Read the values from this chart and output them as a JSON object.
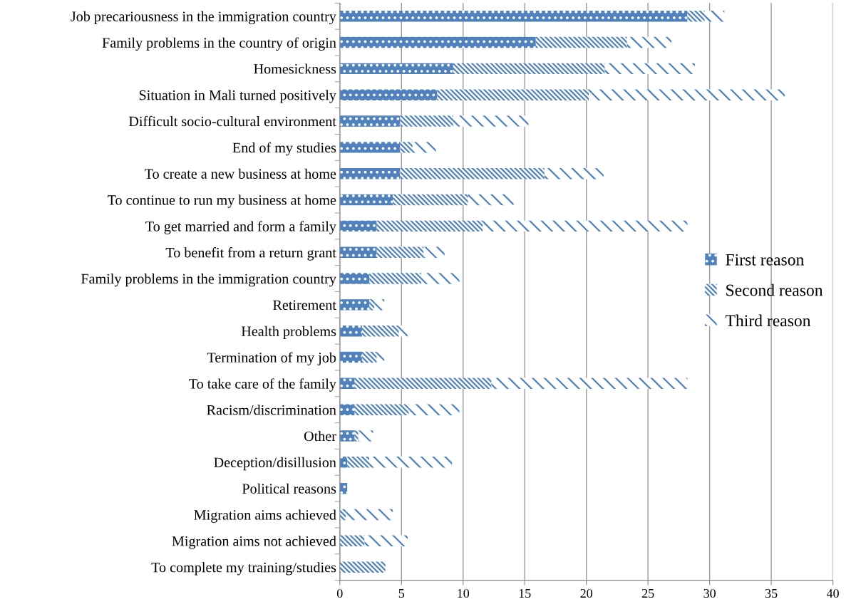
{
  "chart_data": {
    "type": "bar",
    "orientation": "horizontal",
    "stacked": true,
    "categories": [
      "Job precariousness in the immigration country",
      "Family problems in the country of origin",
      "Homesickness",
      "Situation in Mali turned positively",
      "Difficult socio-cultural environment",
      "End of my studies",
      "To create a new business at home",
      "To continue to run my business at home",
      "To get married and form a family",
      "To benefit from a return grant",
      "Family problems in the immigration country",
      "Retirement",
      "Health problems",
      "Termination of my job",
      "To take care of the family",
      "Racism/discrimination",
      "Other",
      "Deception/disillusion",
      "Political reasons",
      "Migration aims achieved",
      "Migration aims not achieved",
      "To complete my training/studies"
    ],
    "series": [
      {
        "name": "First reason",
        "color": "#4f81bd",
        "values": [
          28.2,
          15.9,
          9.2,
          7.9,
          4.9,
          4.9,
          4.9,
          4.3,
          3.0,
          3.0,
          2.4,
          2.4,
          1.8,
          1.8,
          1.2,
          1.2,
          1.2,
          0.6,
          0.6,
          0,
          0,
          0
        ]
      },
      {
        "name": "Second reason",
        "color": "#4f81bd",
        "values": [
          1.4,
          7.4,
          12.3,
          12.3,
          4.3,
          1.0,
          11.7,
          6.1,
          8.6,
          3.8,
          4.2,
          0.4,
          3.0,
          1.2,
          11.1,
          4.4,
          0.3,
          1.8,
          0,
          0.5,
          2.0,
          3.7
        ]
      },
      {
        "name": "Third reason",
        "color": "#4f81bd",
        "values": [
          1.6,
          3.6,
          7.3,
          15.9,
          6.1,
          1.9,
          4.8,
          3.7,
          16.6,
          1.7,
          3.1,
          0.8,
          0.7,
          0.6,
          15.9,
          4.1,
          1.2,
          6.7,
          0,
          3.8,
          3.5,
          0
        ]
      }
    ],
    "xlim": [
      0,
      40
    ],
    "xticks": [
      0,
      5,
      10,
      15,
      20,
      25,
      30,
      35,
      40
    ],
    "grid": "x",
    "legend": "right"
  }
}
